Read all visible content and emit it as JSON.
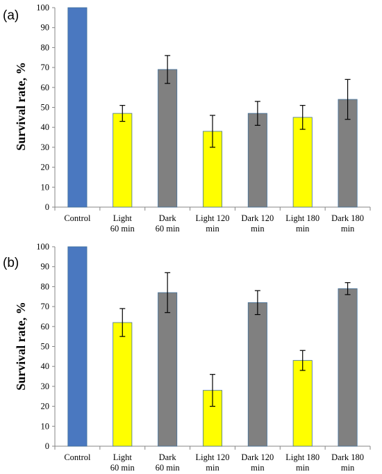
{
  "figure": {
    "categories": [
      "Control",
      "Light\n60 min",
      "Dark\n60 min",
      "Light 120\nmin",
      "Dark 120\nmin",
      "Light 180\nmin",
      "Dark 180\nmin"
    ],
    "category_colors": [
      "#4a78c0",
      "#ffff00",
      "#808080",
      "#ffff00",
      "#808080",
      "#ffff00",
      "#808080"
    ]
  },
  "chart_data": [
    {
      "type": "bar",
      "panel_label": "(a)",
      "categories": [
        "Control",
        "Light 60 min",
        "Dark 60 min",
        "Light 120 min",
        "Dark 120 min",
        "Light 180 min",
        "Dark 180 min"
      ],
      "values": [
        100,
        47,
        69,
        38,
        47,
        45,
        54
      ],
      "error_bars": [
        0,
        4,
        7,
        8,
        6,
        6,
        10
      ],
      "ylabel": "Survival rate, %",
      "ylim": [
        0,
        100
      ],
      "yticks": [
        0,
        10,
        20,
        30,
        40,
        50,
        60,
        70,
        80,
        90,
        100
      ],
      "grid": false
    },
    {
      "type": "bar",
      "panel_label": "(b)",
      "categories": [
        "Control",
        "Light 60 min",
        "Dark 60 min",
        "Light 120 min",
        "Dark 120 min",
        "Light 180 min",
        "Dark 180 min"
      ],
      "values": [
        100,
        62,
        77,
        28,
        72,
        43,
        79
      ],
      "error_bars": [
        0,
        7,
        10,
        8,
        6,
        5,
        3
      ],
      "ylabel": "Survival rate, %",
      "ylim": [
        0,
        100
      ],
      "yticks": [
        0,
        10,
        20,
        30,
        40,
        50,
        60,
        70,
        80,
        90,
        100
      ],
      "grid": false
    }
  ]
}
